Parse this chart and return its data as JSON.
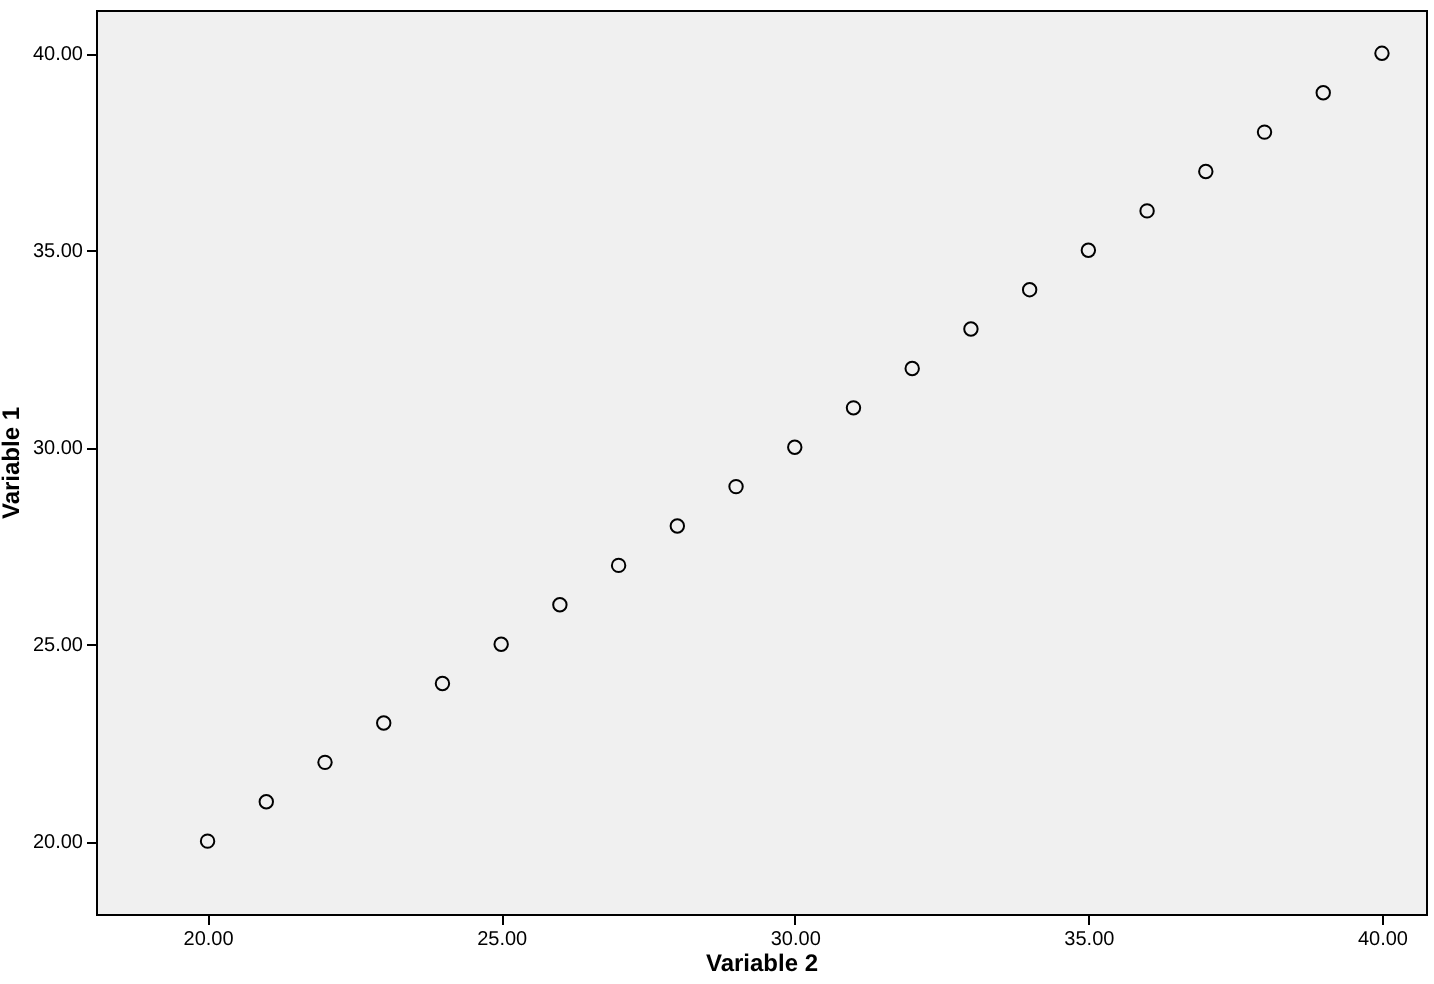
{
  "chart_data": {
    "type": "scatter",
    "xlabel": "Variable 2",
    "ylabel": "Variable 1",
    "x": [
      20,
      21,
      22,
      23,
      24,
      25,
      26,
      27,
      28,
      29,
      30,
      31,
      32,
      33,
      34,
      35,
      36,
      37,
      38,
      39,
      40
    ],
    "series": [
      {
        "color": "#000000",
        "values": [
          20,
          21,
          22,
          23,
          24,
          25,
          26,
          27,
          28,
          29,
          30,
          31,
          32,
          33,
          34,
          35,
          36,
          37,
          38,
          39,
          40
        ]
      }
    ],
    "xlim": [
      18.1,
      40.75
    ],
    "ylim": [
      18.15,
      41.1
    ],
    "xticks": [
      {
        "value": 20,
        "label": "20.00"
      },
      {
        "value": 25,
        "label": "25.00"
      },
      {
        "value": 30,
        "label": "30.00"
      },
      {
        "value": 35,
        "label": "35.00"
      },
      {
        "value": 40,
        "label": "40.00"
      }
    ],
    "yticks": [
      {
        "value": 20,
        "label": "20.00"
      },
      {
        "value": 25,
        "label": "25.00"
      },
      {
        "value": 30,
        "label": "30.00"
      },
      {
        "value": 35,
        "label": "35.00"
      },
      {
        "value": 40,
        "label": "40.00"
      }
    ],
    "grid": false,
    "marker": "circle"
  }
}
